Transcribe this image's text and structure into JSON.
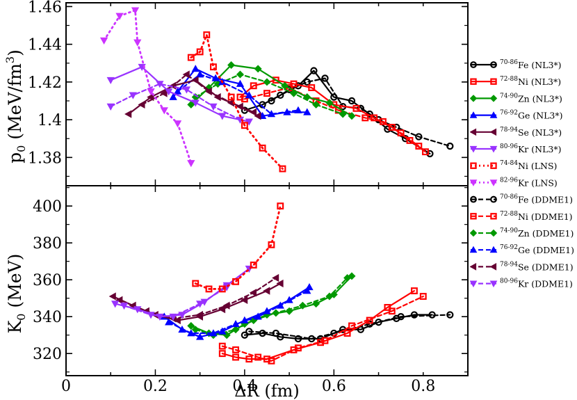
{
  "chart_data": [
    {
      "type": "line",
      "panel": "top",
      "ylabel": "p",
      "ylabel_sub": "0",
      "ylabel_unit": "(MeV/fm",
      "ylabel_sup": "3",
      "ylabel_end": ")",
      "xlim": [
        0,
        0.9
      ],
      "ylim": [
        1.365,
        1.462
      ],
      "yticks": [
        1.38,
        1.4,
        1.42,
        1.44,
        1.46
      ],
      "ytick_labels": [
        "1.38",
        "1.4",
        "1.42",
        "1.44",
        "1.46"
      ],
      "series": [
        {
          "name": "Fe (NL3*)",
          "color": "#000000",
          "marker": "circle",
          "dash": "none",
          "x": [
            0.4,
            0.44,
            0.48,
            0.52,
            0.555,
            0.6,
            0.64,
            0.68,
            0.72,
            0.76,
            0.815
          ],
          "y": [
            1.405,
            1.408,
            1.413,
            1.418,
            1.426,
            1.412,
            1.41,
            1.403,
            1.395,
            1.39,
            1.382
          ]
        },
        {
          "name": "Fe (NL3*) dashed",
          "color": "#000000",
          "marker": "circle",
          "dash": "6,4",
          "x": [
            0.46,
            0.5,
            0.54,
            0.58,
            0.62,
            0.66,
            0.7,
            0.74,
            0.79,
            0.86
          ],
          "y": [
            1.41,
            1.416,
            1.42,
            1.422,
            1.407,
            1.406,
            1.4,
            1.396,
            1.391,
            1.386
          ]
        },
        {
          "name": "Ni (NL3*)",
          "color": "#ff0000",
          "marker": "square",
          "dash": "none",
          "x": [
            0.39,
            0.42,
            0.47,
            0.51,
            0.55,
            0.6,
            0.65,
            0.69,
            0.73,
            0.77,
            0.805
          ],
          "y": [
            1.412,
            1.418,
            1.421,
            1.419,
            1.417,
            1.408,
            1.406,
            1.401,
            1.396,
            1.389,
            1.383
          ]
        },
        {
          "name": "Ni (NL3*) dashed",
          "color": "#ff0000",
          "marker": "square",
          "dash": "6,4",
          "x": [
            0.4,
            0.45,
            0.5,
            0.56,
            0.61,
            0.67,
            0.71,
            0.75,
            0.79
          ],
          "y": [
            1.411,
            1.414,
            1.417,
            1.41,
            1.405,
            1.401,
            1.399,
            1.393,
            1.386
          ]
        },
        {
          "name": "Zn (NL3*)",
          "color": "#009900",
          "marker": "diamond",
          "dash": "none",
          "x": [
            0.28,
            0.32,
            0.37,
            0.43,
            0.49,
            0.54,
            0.59,
            0.64
          ],
          "y": [
            1.408,
            1.417,
            1.429,
            1.427,
            1.418,
            1.412,
            1.409,
            1.402
          ]
        },
        {
          "name": "Zn (NL3*) dashed",
          "color": "#009900",
          "marker": "diamond",
          "dash": "6,4",
          "x": [
            0.29,
            0.34,
            0.39,
            0.45,
            0.51,
            0.56,
            0.62
          ],
          "y": [
            1.412,
            1.419,
            1.424,
            1.42,
            1.414,
            1.408,
            1.403
          ]
        },
        {
          "name": "Ge (NL3*)",
          "color": "#0000ff",
          "marker": "triangle-up",
          "dash": "none",
          "x": [
            0.24,
            0.29,
            0.335,
            0.39,
            0.44,
            0.495,
            0.54
          ],
          "y": [
            1.412,
            1.427,
            1.422,
            1.419,
            1.402,
            1.404,
            1.404
          ]
        },
        {
          "name": "Ge (NL3*) dashed",
          "color": "#0000ff",
          "marker": "triangle-up",
          "dash": "6,4",
          "x": [
            0.25,
            0.3,
            0.35,
            0.41,
            0.46,
            0.52
          ],
          "y": [
            1.415,
            1.424,
            1.42,
            1.413,
            1.403,
            1.405
          ]
        },
        {
          "name": "Se (NL3*)",
          "color": "#660033",
          "marker": "triangle-left",
          "dash": "none",
          "x": [
            0.14,
            0.19,
            0.24,
            0.29,
            0.34,
            0.39,
            0.43
          ],
          "y": [
            1.403,
            1.412,
            1.418,
            1.421,
            1.412,
            1.407,
            1.402
          ]
        },
        {
          "name": "Se (NL3*) dashed",
          "color": "#660033",
          "marker": "triangle-left",
          "dash": "6,4",
          "x": [
            0.17,
            0.22,
            0.27,
            0.32,
            0.37,
            0.42
          ],
          "y": [
            1.408,
            1.414,
            1.424,
            1.415,
            1.409,
            1.404
          ]
        },
        {
          "name": "Kr (NL3*)",
          "color": "#9933ff",
          "marker": "triangle-down",
          "dash": "none",
          "x": [
            0.1,
            0.17,
            0.23,
            0.29,
            0.35,
            0.41
          ],
          "y": [
            1.421,
            1.428,
            1.415,
            1.409,
            1.402,
            1.399
          ]
        },
        {
          "name": "Kr (NL3*) dashed",
          "color": "#9933ff",
          "marker": "triangle-down",
          "dash": "6,4",
          "x": [
            0.1,
            0.15,
            0.21,
            0.27,
            0.33,
            0.39
          ],
          "y": [
            1.407,
            1.413,
            1.419,
            1.416,
            1.407,
            1.4
          ]
        },
        {
          "name": "Ni (LNS)",
          "color": "#ff0000",
          "marker": "square",
          "dash": "2,5",
          "x": [
            0.28,
            0.3,
            0.315,
            0.33,
            0.37,
            0.4,
            0.44,
            0.485
          ],
          "y": [
            1.433,
            1.436,
            1.445,
            1.428,
            1.412,
            1.397,
            1.385,
            1.374
          ]
        },
        {
          "name": "Kr (LNS)",
          "color": "#cc33ff",
          "marker": "triangle-down",
          "dash": "2,5",
          "x": [
            0.085,
            0.12,
            0.155,
            0.16,
            0.19,
            0.22,
            0.25,
            0.28
          ],
          "y": [
            1.442,
            1.455,
            1.458,
            1.441,
            1.415,
            1.405,
            1.398,
            1.377
          ]
        }
      ]
    },
    {
      "type": "line",
      "panel": "bottom",
      "ylabel": "K",
      "ylabel_sub": "0",
      "ylabel_unit": "(MeV)",
      "xlabel": "ΔR (fm)",
      "xlim": [
        0,
        0.9
      ],
      "ylim": [
        308,
        411
      ],
      "yticks": [
        320,
        340,
        360,
        380,
        400
      ],
      "ytick_labels": [
        "320",
        "340",
        "360",
        "380",
        "400"
      ],
      "xticks": [
        0,
        0.2,
        0.4,
        0.6,
        0.8
      ],
      "xtick_labels": [
        "0",
        "0.2",
        "0.4",
        "0.6",
        "0.8"
      ],
      "series": [
        {
          "name": "Fe (DDME1)",
          "color": "#000000",
          "marker": "circle",
          "dash": "none",
          "x": [
            0.4,
            0.44,
            0.48,
            0.52,
            0.57,
            0.62,
            0.66,
            0.7,
            0.74,
            0.78,
            0.82
          ],
          "y": [
            330,
            331,
            329,
            328,
            328,
            333,
            333,
            337,
            339,
            341,
            341
          ]
        },
        {
          "name": "Fe (DDME1) dashed",
          "color": "#000000",
          "marker": "circle",
          "dash": "6,4",
          "x": [
            0.41,
            0.47,
            0.55,
            0.6,
            0.68,
            0.75,
            0.86
          ],
          "y": [
            332,
            331,
            328,
            331,
            336,
            340,
            341
          ]
        },
        {
          "name": "Ni (DDME1)",
          "color": "#ff0000",
          "marker": "square",
          "dash": "none",
          "x": [
            0.35,
            0.38,
            0.41,
            0.45,
            0.51,
            0.57,
            0.63,
            0.68,
            0.72,
            0.78
          ],
          "y": [
            320,
            318,
            317,
            317,
            322,
            326,
            331,
            338,
            345,
            354
          ]
        },
        {
          "name": "Ni (DDME1) dashed",
          "color": "#ff0000",
          "marker": "square",
          "dash": "6,4",
          "x": [
            0.35,
            0.38,
            0.43,
            0.46,
            0.52,
            0.58,
            0.64,
            0.73,
            0.8
          ],
          "y": [
            324,
            322,
            318,
            316,
            323,
            327,
            335,
            343,
            351
          ]
        },
        {
          "name": "Zn (DDME1)",
          "color": "#009900",
          "marker": "diamond",
          "dash": "none",
          "x": [
            0.28,
            0.32,
            0.36,
            0.4,
            0.45,
            0.5,
            0.56,
            0.6,
            0.64
          ],
          "y": [
            335,
            331,
            330,
            336,
            341,
            343,
            347,
            352,
            362
          ]
        },
        {
          "name": "Zn (DDME1) dashed",
          "color": "#009900",
          "marker": "diamond",
          "dash": "6,4",
          "x": [
            0.29,
            0.33,
            0.38,
            0.42,
            0.47,
            0.53,
            0.59,
            0.63
          ],
          "y": [
            333,
            330,
            333,
            338,
            342,
            346,
            351,
            361
          ]
        },
        {
          "name": "Ge (DDME1)",
          "color": "#0000ff",
          "marker": "triangle-up",
          "dash": "none",
          "x": [
            0.22,
            0.26,
            0.3,
            0.35,
            0.4,
            0.45,
            0.5,
            0.545
          ],
          "y": [
            340,
            333,
            329,
            332,
            338,
            343,
            349,
            356
          ]
        },
        {
          "name": "Ge (DDME1) dashed",
          "color": "#0000ff",
          "marker": "triangle-up",
          "dash": "6,4",
          "x": [
            0.23,
            0.28,
            0.33,
            0.38,
            0.43,
            0.48,
            0.54
          ],
          "y": [
            337,
            331,
            331,
            336,
            340,
            346,
            354
          ]
        },
        {
          "name": "Se (DDME1)",
          "color": "#660033",
          "marker": "triangle-left",
          "dash": "none",
          "x": [
            0.105,
            0.15,
            0.2,
            0.25,
            0.3,
            0.35,
            0.4,
            0.45,
            0.48
          ],
          "y": [
            351,
            346,
            341,
            338,
            340,
            344,
            349,
            354,
            358
          ]
        },
        {
          "name": "Se (DDME1) dashed",
          "color": "#660033",
          "marker": "triangle-left",
          "dash": "6,4",
          "x": [
            0.12,
            0.18,
            0.24,
            0.3,
            0.36,
            0.42,
            0.47
          ],
          "y": [
            349,
            343,
            339,
            341,
            346,
            353,
            361
          ]
        },
        {
          "name": "Kr (DDME1)",
          "color": "#9933ff",
          "marker": "triangle-down",
          "dash": "none",
          "x": [
            0.11,
            0.16,
            0.21,
            0.26,
            0.31,
            0.36,
            0.41
          ],
          "y": [
            347,
            344,
            340,
            341,
            348,
            357,
            366
          ]
        },
        {
          "name": "Kr (DDME1) dashed",
          "color": "#9933ff",
          "marker": "triangle-down",
          "dash": "6,4",
          "x": [
            0.13,
            0.19,
            0.24,
            0.3,
            0.36
          ],
          "y": [
            346,
            341,
            340,
            347,
            356
          ]
        },
        {
          "name": "Ni (LNS)",
          "color": "#ff0000",
          "marker": "square",
          "dash": "2,5",
          "x": [
            0.29,
            0.32,
            0.35,
            0.38,
            0.42,
            0.46,
            0.48
          ],
          "y": [
            358,
            355,
            355,
            359,
            368,
            379,
            400
          ]
        }
      ]
    }
  ],
  "x_tick_labels": [
    "0",
    "0.2",
    "0.4",
    "0.6",
    "0.8"
  ],
  "x_axis_label": "ΔR (fm)",
  "legend": [
    {
      "mass": "70-86",
      "element": "Fe",
      "model": "(NL3*)",
      "color": "#000000",
      "marker": "circle",
      "style": "solid"
    },
    {
      "mass": "72-88",
      "element": "Ni",
      "model": "(NL3*)",
      "color": "#ff0000",
      "marker": "square",
      "style": "solid"
    },
    {
      "mass": "74-90",
      "element": "Zn",
      "model": "(NL3*)",
      "color": "#009900",
      "marker": "diamond",
      "style": "solid"
    },
    {
      "mass": "76-92",
      "element": "Ge",
      "model": "(NL3*)",
      "color": "#0000ff",
      "marker": "triangle-up",
      "style": "solid"
    },
    {
      "mass": "78-94",
      "element": "Se",
      "model": "(NL3*)",
      "color": "#660033",
      "marker": "triangle-left",
      "style": "solid"
    },
    {
      "mass": "80-96",
      "element": "Kr",
      "model": "(NL3*)",
      "color": "#9933ff",
      "marker": "triangle-down",
      "style": "solid"
    },
    {
      "mass": "74-84",
      "element": "Ni",
      "model": "(LNS)",
      "color": "#ff0000",
      "marker": "square",
      "style": "dotted"
    },
    {
      "mass": "82-96",
      "element": "Kr",
      "model": "(LNS)",
      "color": "#cc33ff",
      "marker": "triangle-down",
      "style": "dotted"
    },
    {
      "mass": "70-86",
      "element": "Fe",
      "model": "(DDME1)",
      "color": "#000000",
      "marker": "circle",
      "style": "dashed"
    },
    {
      "mass": "72-88",
      "element": "Ni",
      "model": "(DDME1)",
      "color": "#ff0000",
      "marker": "square",
      "style": "dashed"
    },
    {
      "mass": "74-90",
      "element": "Zn",
      "model": "(DDME1)",
      "color": "#009900",
      "marker": "diamond",
      "style": "dashed"
    },
    {
      "mass": "76-92",
      "element": "Ge",
      "model": "(DDME1)",
      "color": "#0000ff",
      "marker": "triangle-up",
      "style": "dashed"
    },
    {
      "mass": "78-94",
      "element": "Se",
      "model": "(DDME1)",
      "color": "#660033",
      "marker": "triangle-left",
      "style": "dashed"
    },
    {
      "mass": "80-96",
      "element": "Kr",
      "model": "(DDME1)",
      "color": "#9933ff",
      "marker": "triangle-down",
      "style": "dashed"
    }
  ]
}
